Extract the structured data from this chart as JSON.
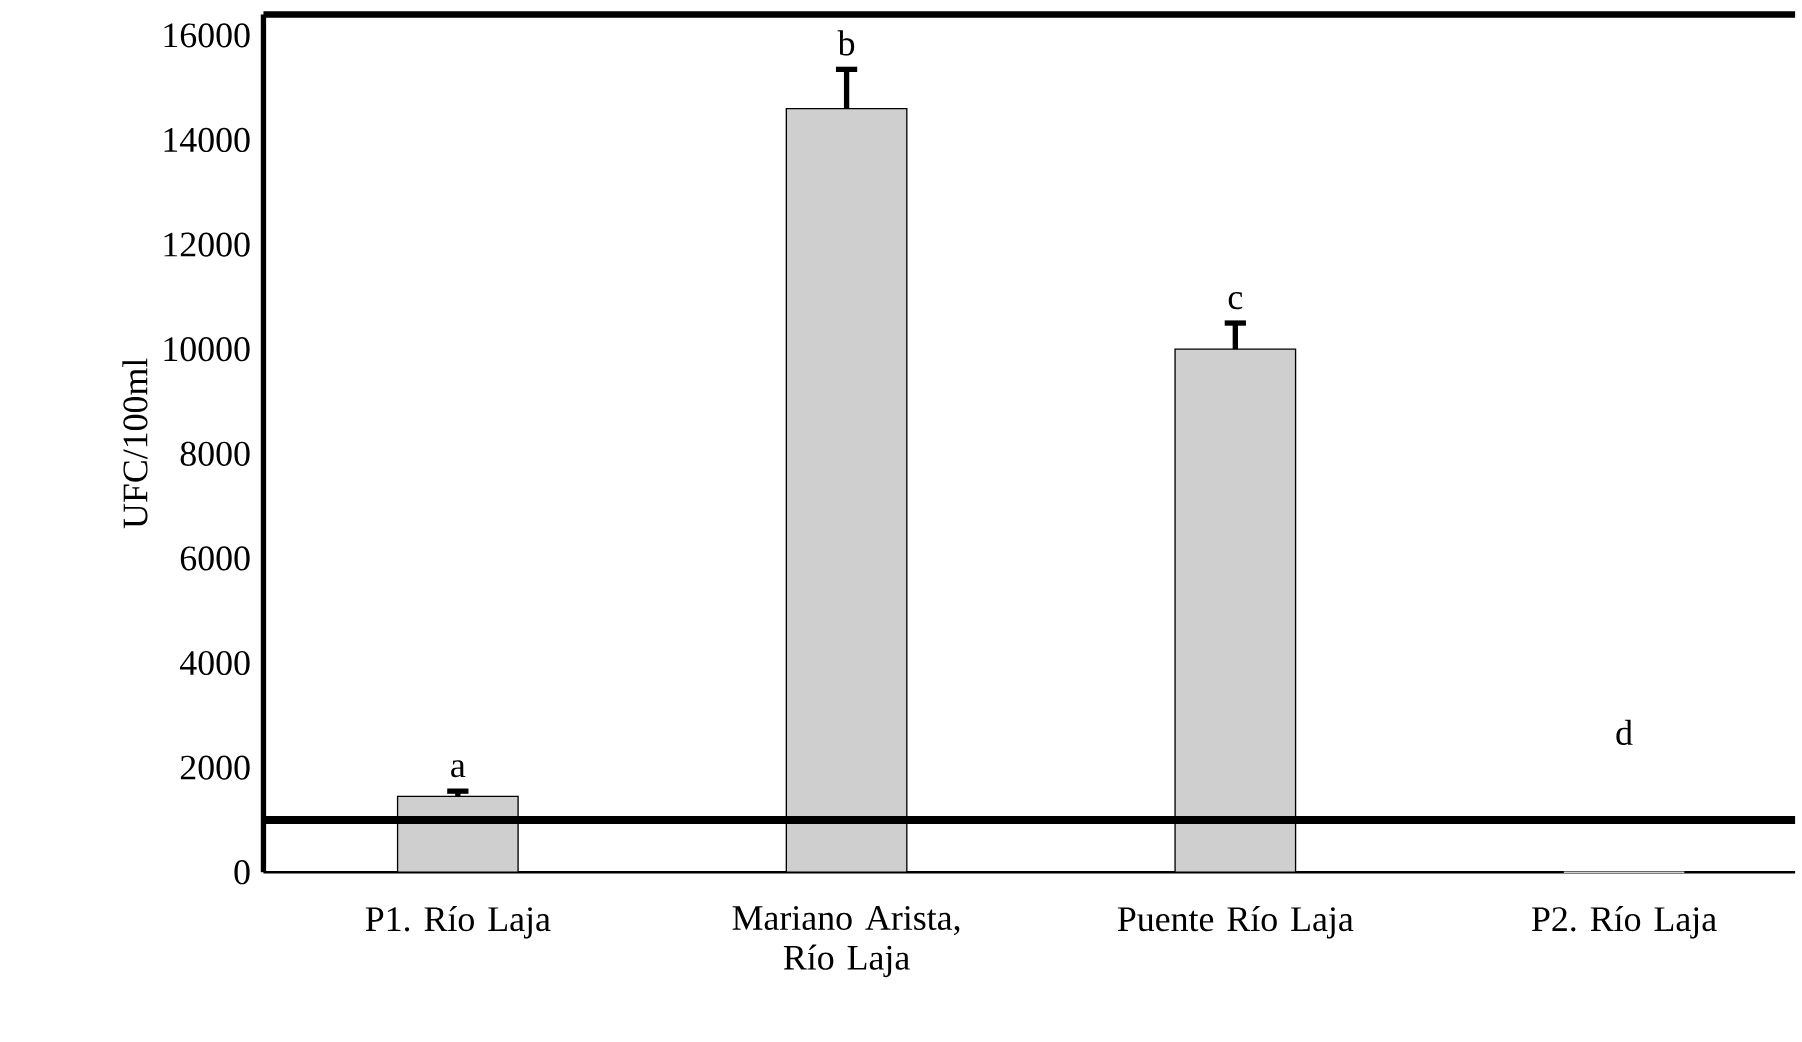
{
  "chart_data": {
    "type": "bar",
    "ylabel": "UFC/100ml",
    "categories": [
      "P1. Río Laja",
      "Mariano Arista, Río Laja",
      "Puente Río Laja",
      "P2. Río Laja"
    ],
    "values": [
      1450,
      14600,
      10000,
      0
    ],
    "errors": [
      [
        1450,
        1550
      ],
      [
        14600,
        15350
      ],
      [
        10000,
        10500
      ],
      null
    ],
    "color": "#d0cfd0",
    "ylim": [
      0,
      16400
    ],
    "yticks": [
      0,
      2000,
      4000,
      6000,
      8000,
      10000,
      12000,
      14000,
      16000
    ],
    "ref_lines": [
      {
        "axis": "y",
        "value": 1000,
        "color": "#000000"
      }
    ],
    "annotations": [
      "a",
      "b",
      "c",
      "d"
    ]
  }
}
